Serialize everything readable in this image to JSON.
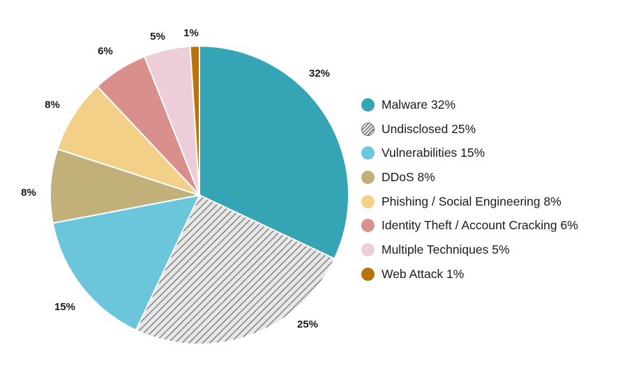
{
  "chart_data": {
    "type": "pie",
    "title": "",
    "slices": [
      {
        "name": "Malware",
        "value": 32,
        "label": "32%",
        "legend": "Malware 32%",
        "color": "#35a5b5",
        "pattern": "solid"
      },
      {
        "name": "Undisclosed",
        "value": 25,
        "label": "25%",
        "legend": "Undisclosed 25%",
        "color": "#e6e6e6",
        "pattern": "hatched"
      },
      {
        "name": "Vulnerabilities",
        "value": 15,
        "label": "15%",
        "legend": "Vulnerabilities 15%",
        "color": "#6cc6db",
        "pattern": "solid"
      },
      {
        "name": "DDoS",
        "value": 8,
        "label": "8%",
        "legend": "DDoS 8%",
        "color": "#c2b07a",
        "pattern": "solid"
      },
      {
        "name": "Phishing / Social Engineering",
        "value": 8,
        "label": "8%",
        "legend": "Phishing / Social Engineering 8%",
        "color": "#f2d087",
        "pattern": "solid"
      },
      {
        "name": "Identity Theft / Account Cracking",
        "value": 6,
        "label": "6%",
        "legend": "Identity Theft / Account Cracking 6%",
        "color": "#d9908d",
        "pattern": "solid"
      },
      {
        "name": "Multiple Techniques",
        "value": 5,
        "label": "5%",
        "legend": "Multiple Techniques 5%",
        "color": "#edcdd8",
        "pattern": "solid"
      },
      {
        "name": "Web Attack",
        "value": 1,
        "label": "1%",
        "legend": "Web Attack 1%",
        "color": "#b8720e",
        "pattern": "solid"
      }
    ],
    "start_angle": "12 o'clock",
    "direction": "clockwise",
    "legend_position": "right"
  }
}
